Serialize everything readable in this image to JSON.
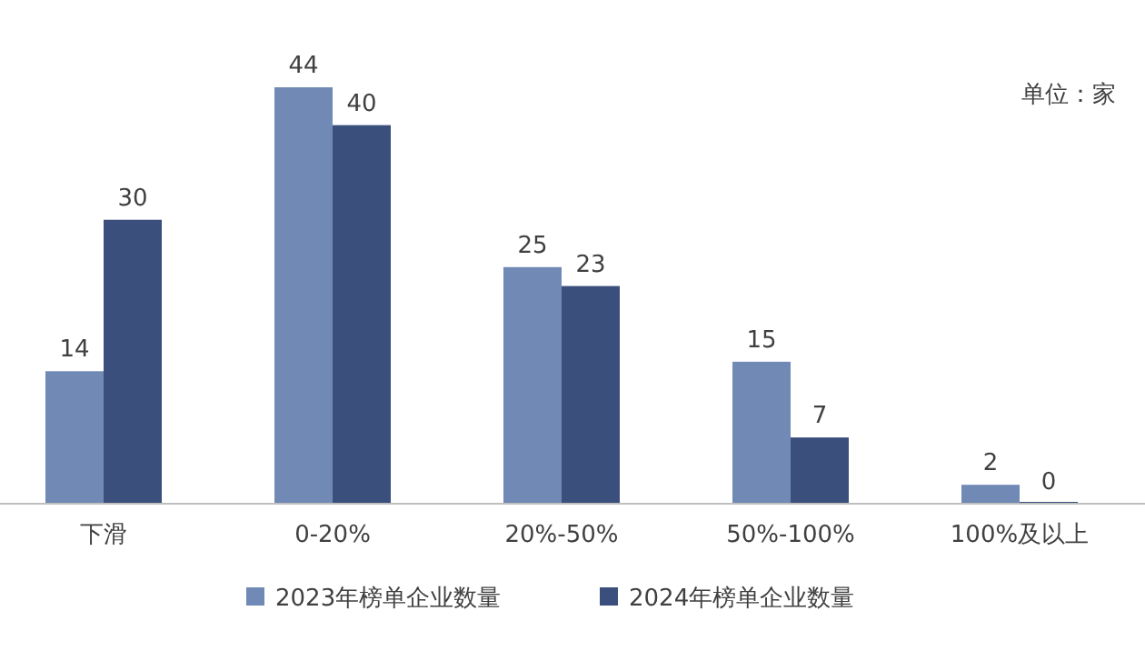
{
  "chart_data": {
    "type": "bar",
    "categories": [
      "下滑",
      "0-20%",
      "20%-50%",
      "50%-100%",
      "100%及以上"
    ],
    "series": [
      {
        "name": "2023年榜单企业数量",
        "color": "#7189b5",
        "values": [
          14,
          44,
          25,
          15,
          2
        ]
      },
      {
        "name": "2024年榜单企业数量",
        "color": "#3b4f7d",
        "values": [
          30,
          40,
          23,
          7,
          0
        ]
      }
    ],
    "data_labels": true,
    "legend": "bottom",
    "annotations": [
      "单位：家"
    ]
  }
}
